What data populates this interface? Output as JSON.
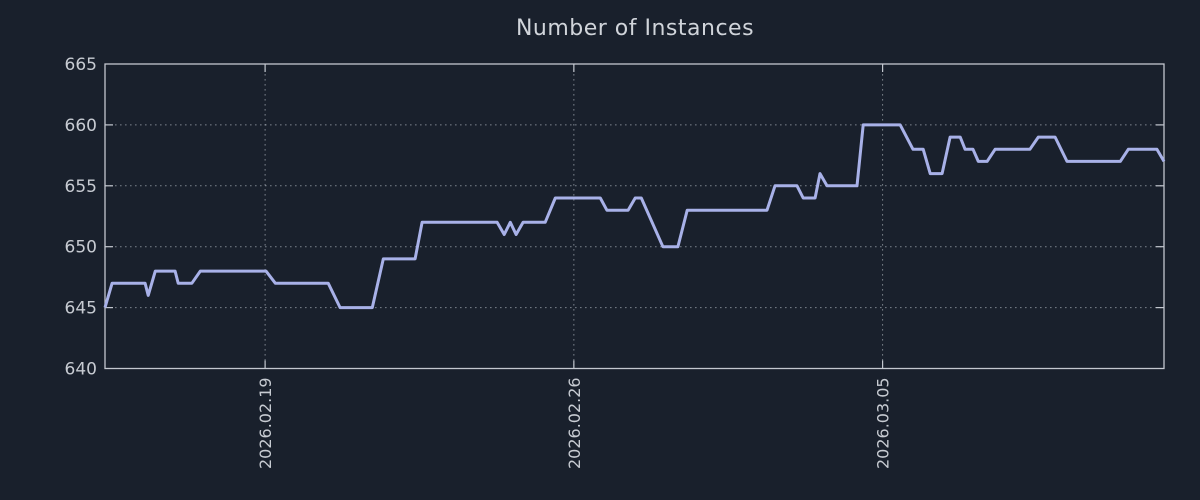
{
  "title": "Number of Instances",
  "colors": {
    "background": "#19202c",
    "line": "#a8b1e8",
    "axis_border": "#c3c7cf",
    "gridline": "#dde3eb",
    "title_text": "#d0d4da",
    "tick_text": "#c7cbd2"
  },
  "chart_data": {
    "type": "line",
    "title": "Number of Instances",
    "xlabel": "",
    "ylabel": "",
    "legend": "none",
    "grid": "dotted",
    "x_unit": "days since 2026-02-19",
    "xlim": [
      -3.63,
      20.38
    ],
    "ylim": [
      640,
      665
    ],
    "y_ticks": [
      640,
      645,
      650,
      655,
      660,
      665
    ],
    "x_ticks": [
      {
        "offset": 0,
        "label": "2026.02.19"
      },
      {
        "offset": 7,
        "label": "2026.02.26"
      },
      {
        "offset": 14,
        "label": "2026.03.05"
      }
    ],
    "series": [
      {
        "name": "instances",
        "points": [
          [
            -3.63,
            645
          ],
          [
            -3.47,
            647
          ],
          [
            -2.72,
            647
          ],
          [
            -2.65,
            646
          ],
          [
            -2.49,
            648
          ],
          [
            -2.04,
            648
          ],
          [
            -1.97,
            647
          ],
          [
            -1.66,
            647
          ],
          [
            -1.47,
            648
          ],
          [
            0.02,
            648
          ],
          [
            0.23,
            647
          ],
          [
            1.43,
            647
          ],
          [
            1.7,
            645
          ],
          [
            2.43,
            645
          ],
          [
            2.68,
            649
          ],
          [
            3.4,
            649
          ],
          [
            3.56,
            652
          ],
          [
            5.26,
            652
          ],
          [
            5.42,
            651
          ],
          [
            5.56,
            652
          ],
          [
            5.69,
            651
          ],
          [
            5.85,
            652
          ],
          [
            6.35,
            652
          ],
          [
            6.58,
            654
          ],
          [
            7.6,
            654
          ],
          [
            7.75,
            653
          ],
          [
            8.23,
            653
          ],
          [
            8.39,
            654
          ],
          [
            8.53,
            654
          ],
          [
            9.02,
            650
          ],
          [
            9.36,
            650
          ],
          [
            9.57,
            653
          ],
          [
            11.38,
            653
          ],
          [
            11.56,
            655
          ],
          [
            12.06,
            655
          ],
          [
            12.2,
            654
          ],
          [
            12.47,
            654
          ],
          [
            12.58,
            656
          ],
          [
            12.74,
            655
          ],
          [
            13.42,
            655
          ],
          [
            13.56,
            660
          ],
          [
            14.4,
            660
          ],
          [
            14.69,
            658
          ],
          [
            14.92,
            658
          ],
          [
            15.08,
            656
          ],
          [
            15.35,
            656
          ],
          [
            15.53,
            659
          ],
          [
            15.76,
            659
          ],
          [
            15.87,
            658
          ],
          [
            16.05,
            658
          ],
          [
            16.17,
            657
          ],
          [
            16.37,
            657
          ],
          [
            16.55,
            658
          ],
          [
            17.34,
            658
          ],
          [
            17.53,
            659
          ],
          [
            17.91,
            659
          ],
          [
            18.18,
            657
          ],
          [
            19.39,
            657
          ],
          [
            19.57,
            658
          ],
          [
            20.22,
            658
          ],
          [
            20.38,
            657
          ]
        ]
      }
    ]
  }
}
